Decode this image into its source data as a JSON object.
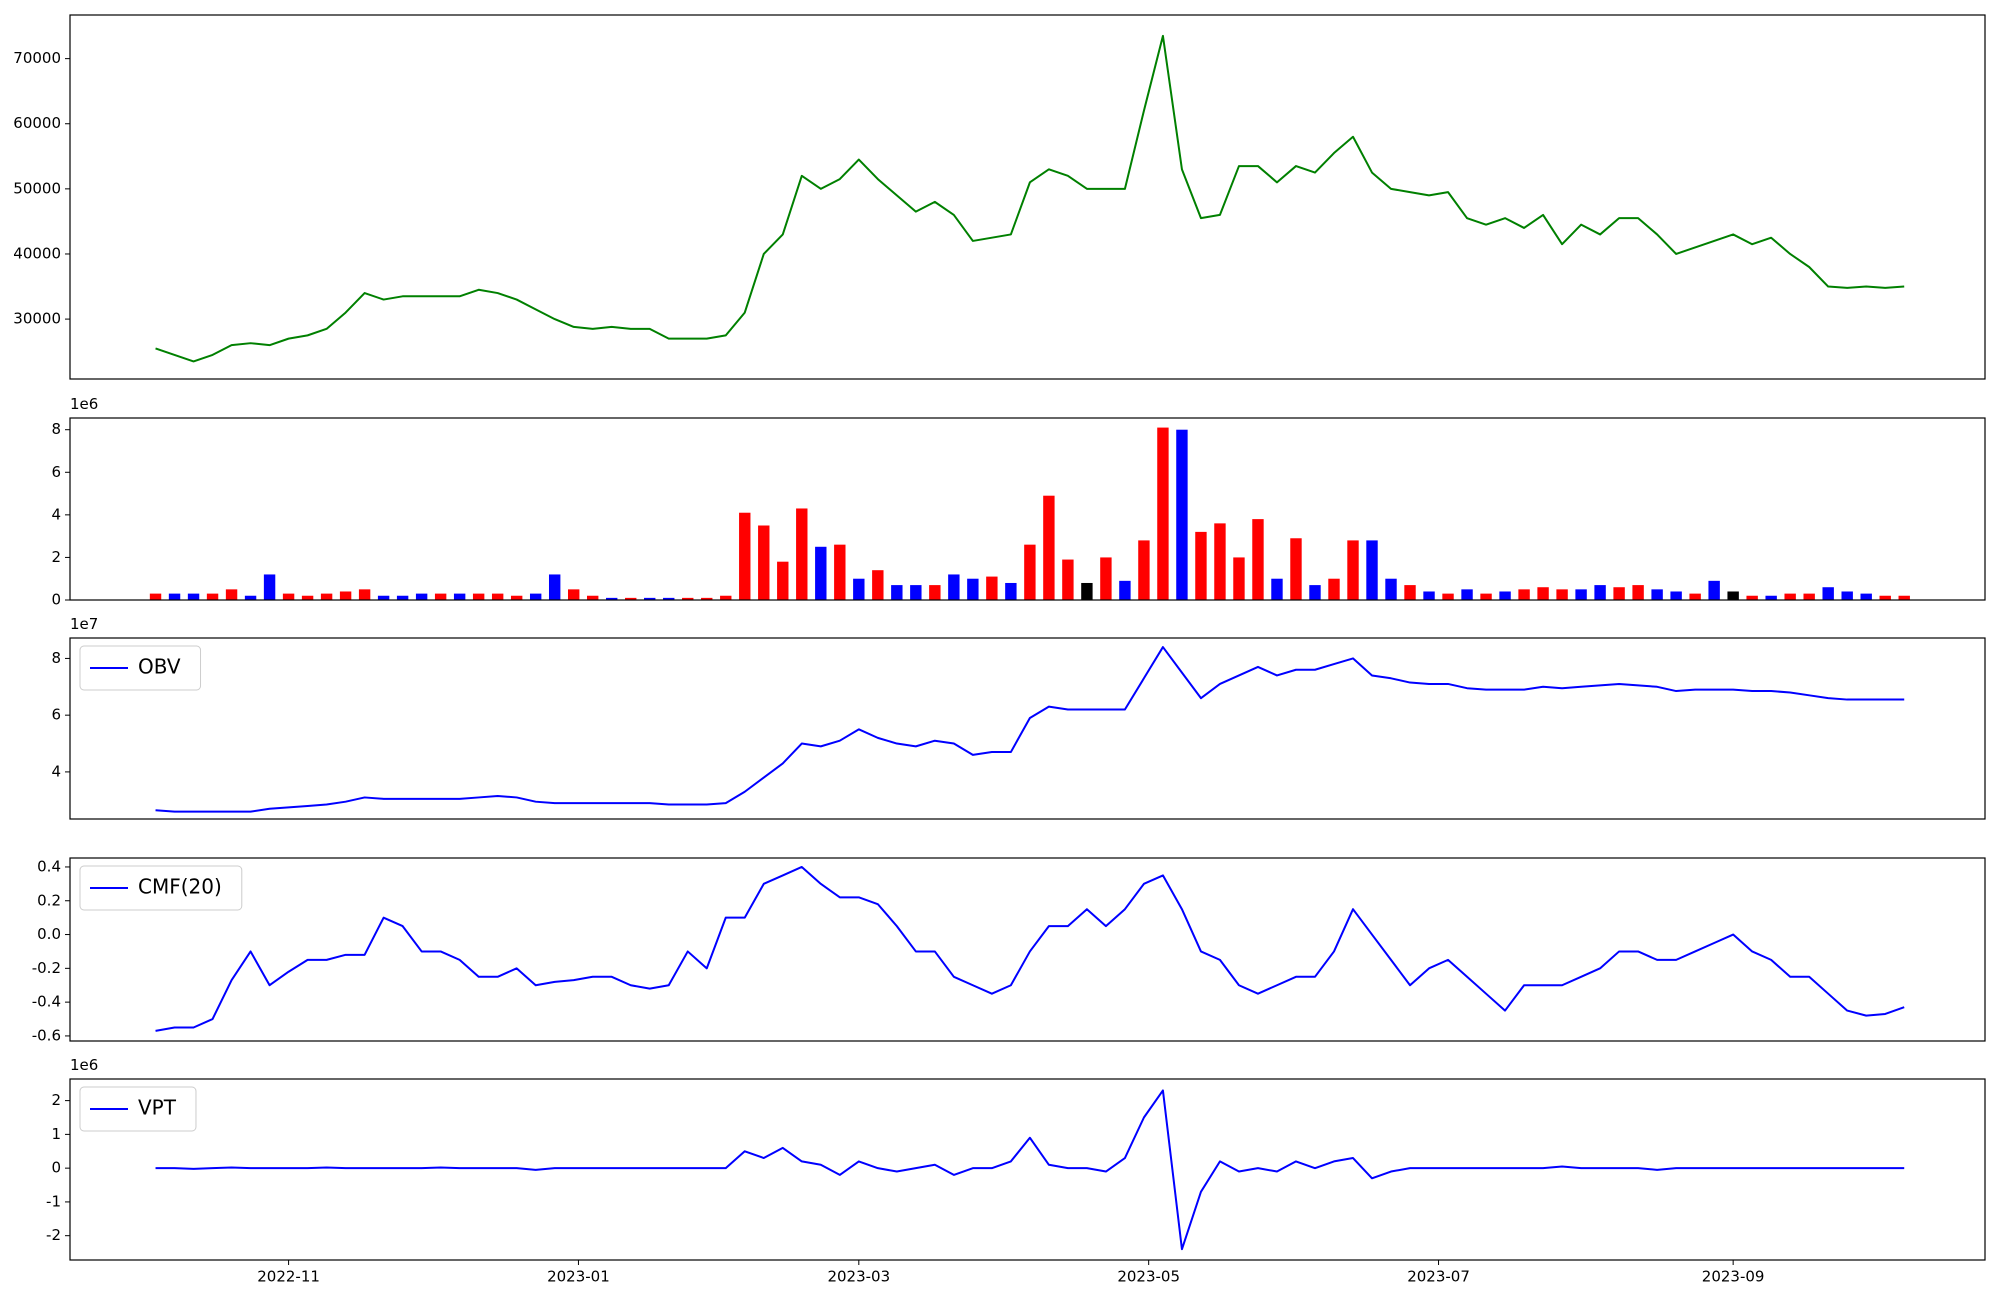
{
  "chart_data": [
    {
      "type": "line",
      "x": [
        19269,
        19273,
        19277,
        19281,
        19285,
        19289,
        19293,
        19297,
        19301,
        19305,
        19309,
        19313,
        19317,
        19321,
        19325,
        19329,
        19333,
        19337,
        19341,
        19345,
        19349,
        19353,
        19357,
        19361,
        19365,
        19369,
        19373,
        19377,
        19381,
        19385,
        19389,
        19393,
        19397,
        19401,
        19405,
        19409,
        19413,
        19417,
        19421,
        19425,
        19429,
        19433,
        19437,
        19441,
        19445,
        19449,
        19453,
        19457,
        19461,
        19465,
        19469,
        19473,
        19477,
        19481,
        19485,
        19489,
        19493,
        19497,
        19501,
        19505,
        19509,
        19513,
        19517,
        19521,
        19525,
        19529,
        19533,
        19537,
        19541,
        19545,
        19549,
        19553,
        19557,
        19561,
        19565,
        19569,
        19573,
        19577,
        19581,
        19585,
        19589,
        19593,
        19597,
        19601,
        19605,
        19609,
        19613,
        19617,
        19621,
        19625,
        19629,
        19633,
        19637
      ],
      "series": [
        {
          "color": "#008000",
          "values": [
            25500,
            24500,
            23500,
            24500,
            26000,
            26300,
            26000,
            27000,
            27500,
            28500,
            31000,
            34000,
            33000,
            33500,
            33500,
            33500,
            33500,
            34500,
            34000,
            33000,
            31500,
            30000,
            28800,
            28500,
            28800,
            28500,
            28500,
            27000,
            27000,
            27000,
            27500,
            31000,
            40000,
            43000,
            52000,
            50000,
            51500,
            54500,
            51500,
            49000,
            46500,
            48000,
            46000,
            42000,
            42500,
            43000,
            51000,
            53000,
            52000,
            50000,
            50000,
            50000,
            62000,
            73500,
            53000,
            45500,
            46000,
            53500,
            53500,
            51000,
            53500,
            52500,
            55500,
            58000,
            52500,
            50000,
            49500,
            49000,
            49500,
            45500,
            44500,
            45500,
            44000,
            46000,
            41500,
            44500,
            43000,
            45500,
            45500,
            43000,
            40000,
            41000,
            42000,
            43000,
            41500,
            42500,
            40000,
            38000,
            35000,
            34800,
            35000,
            34800,
            35000
          ]
        }
      ],
      "xlim": [
        19251,
        19654
      ],
      "ylim": [
        20800,
        76700
      ],
      "yticks": [
        30000,
        40000,
        50000,
        60000,
        70000
      ]
    },
    {
      "type": "bar",
      "offset_label": "1e6",
      "x": [
        19269,
        19273,
        19277,
        19281,
        19285,
        19289,
        19293,
        19297,
        19301,
        19305,
        19309,
        19313,
        19317,
        19321,
        19325,
        19329,
        19333,
        19337,
        19341,
        19345,
        19349,
        19353,
        19357,
        19361,
        19365,
        19369,
        19373,
        19377,
        19381,
        19385,
        19389,
        19393,
        19397,
        19401,
        19405,
        19409,
        19413,
        19417,
        19421,
        19425,
        19429,
        19433,
        19437,
        19441,
        19445,
        19449,
        19453,
        19457,
        19461,
        19465,
        19469,
        19473,
        19477,
        19481,
        19485,
        19489,
        19493,
        19497,
        19501,
        19505,
        19509,
        19513,
        19517,
        19521,
        19525,
        19529,
        19533,
        19537,
        19541,
        19545,
        19549,
        19553,
        19557,
        19561,
        19565,
        19569,
        19573,
        19577,
        19581,
        19585,
        19589,
        19593,
        19597,
        19601,
        19605,
        19609,
        19613,
        19617,
        19621,
        19625,
        19629,
        19633,
        19637
      ],
      "series": [
        {
          "values": [
            0.3,
            0.3,
            0.3,
            0.3,
            0.5,
            0.2,
            1.2,
            0.3,
            0.2,
            0.3,
            0.4,
            0.5,
            0.2,
            0.2,
            0.3,
            0.3,
            0.3,
            0.3,
            0.3,
            0.2,
            0.3,
            1.2,
            0.5,
            0.2,
            0.1,
            0.1,
            0.1,
            0.1,
            0.1,
            0.1,
            0.2,
            4.1,
            3.5,
            1.8,
            4.3,
            2.5,
            2.6,
            1.0,
            1.4,
            0.7,
            0.7,
            0.7,
            1.2,
            1.0,
            1.1,
            0.8,
            2.6,
            4.9,
            1.9,
            0.8,
            2.0,
            0.9,
            2.8,
            8.1,
            8.0,
            3.2,
            3.6,
            2.0,
            3.8,
            1.0,
            2.9,
            0.7,
            1.0,
            2.8,
            2.8,
            1.0,
            0.7,
            0.4,
            0.3,
            0.5,
            0.3,
            0.4,
            0.5,
            0.6,
            0.5,
            0.5,
            0.7,
            0.6,
            0.7,
            0.5,
            0.4,
            0.3,
            0.9,
            0.4,
            0.2,
            0.2,
            0.3,
            0.3,
            0.6,
            0.4,
            0.3,
            0.2,
            0.2
          ],
          "colors": [
            "#ff0000",
            "#0000ff",
            "#0000ff",
            "#ff0000",
            "#ff0000",
            "#0000ff",
            "#0000ff",
            "#ff0000",
            "#ff0000",
            "#ff0000",
            "#ff0000",
            "#ff0000",
            "#0000ff",
            "#0000ff",
            "#0000ff",
            "#ff0000",
            "#0000ff",
            "#ff0000",
            "#ff0000",
            "#ff0000",
            "#0000ff",
            "#0000ff",
            "#ff0000",
            "#ff0000",
            "#0000ff",
            "#ff0000",
            "#0000ff",
            "#0000ff",
            "#ff0000",
            "#ff0000",
            "#ff0000",
            "#ff0000",
            "#ff0000",
            "#ff0000",
            "#ff0000",
            "#0000ff",
            "#ff0000",
            "#0000ff",
            "#ff0000",
            "#0000ff",
            "#0000ff",
            "#ff0000",
            "#0000ff",
            "#0000ff",
            "#ff0000",
            "#0000ff",
            "#ff0000",
            "#ff0000",
            "#ff0000",
            "#000000",
            "#ff0000",
            "#0000ff",
            "#ff0000",
            "#ff0000",
            "#0000ff",
            "#ff0000",
            "#ff0000",
            "#ff0000",
            "#ff0000",
            "#0000ff",
            "#ff0000",
            "#0000ff",
            "#ff0000",
            "#ff0000",
            "#0000ff",
            "#0000ff",
            "#ff0000",
            "#0000ff",
            "#ff0000",
            "#0000ff",
            "#ff0000",
            "#0000ff",
            "#ff0000",
            "#ff0000",
            "#ff0000",
            "#0000ff",
            "#0000ff",
            "#ff0000",
            "#ff0000",
            "#0000ff",
            "#0000ff",
            "#ff0000",
            "#0000ff",
            "#000000",
            "#ff0000",
            "#0000ff",
            "#ff0000",
            "#ff0000",
            "#0000ff",
            "#0000ff",
            "#0000ff",
            "#ff0000",
            "#ff0000"
          ]
        }
      ],
      "xlim": [
        19251,
        19654
      ],
      "ylim": [
        0,
        8.55
      ],
      "yticks": [
        0,
        2,
        4,
        6,
        8
      ]
    },
    {
      "type": "line",
      "offset_label": "1e7",
      "legend": "upper left",
      "x": [
        19269,
        19273,
        19277,
        19281,
        19285,
        19289,
        19293,
        19297,
        19301,
        19305,
        19309,
        19313,
        19317,
        19321,
        19325,
        19329,
        19333,
        19337,
        19341,
        19345,
        19349,
        19353,
        19357,
        19361,
        19365,
        19369,
        19373,
        19377,
        19381,
        19385,
        19389,
        19393,
        19397,
        19401,
        19405,
        19409,
        19413,
        19417,
        19421,
        19425,
        19429,
        19433,
        19437,
        19441,
        19445,
        19449,
        19453,
        19457,
        19461,
        19465,
        19469,
        19473,
        19477,
        19481,
        19485,
        19489,
        19493,
        19497,
        19501,
        19505,
        19509,
        19513,
        19517,
        19521,
        19525,
        19529,
        19533,
        19537,
        19541,
        19545,
        19549,
        19553,
        19557,
        19561,
        19565,
        19569,
        19573,
        19577,
        19581,
        19585,
        19589,
        19593,
        19597,
        19601,
        19605,
        19609,
        19613,
        19617,
        19621,
        19625,
        19629,
        19633,
        19637
      ],
      "series": [
        {
          "name": "OBV",
          "color": "#0000ff",
          "values": [
            2.65,
            2.6,
            2.6,
            2.6,
            2.6,
            2.6,
            2.7,
            2.75,
            2.8,
            2.85,
            2.95,
            3.1,
            3.05,
            3.05,
            3.05,
            3.05,
            3.05,
            3.1,
            3.15,
            3.1,
            2.95,
            2.9,
            2.9,
            2.9,
            2.9,
            2.9,
            2.9,
            2.85,
            2.85,
            2.85,
            2.9,
            3.3,
            3.8,
            4.3,
            5.0,
            4.9,
            5.1,
            5.5,
            5.2,
            5.0,
            4.9,
            5.1,
            5.0,
            4.6,
            4.7,
            4.7,
            5.9,
            6.3,
            6.2,
            6.2,
            6.2,
            6.2,
            7.3,
            8.4,
            7.5,
            6.6,
            7.1,
            7.4,
            7.7,
            7.4,
            7.6,
            7.6,
            7.8,
            8.0,
            7.4,
            7.3,
            7.15,
            7.1,
            7.1,
            6.95,
            6.9,
            6.9,
            6.9,
            7.0,
            6.95,
            7.0,
            7.05,
            7.1,
            7.05,
            7.0,
            6.85,
            6.9,
            6.9,
            6.9,
            6.85,
            6.85,
            6.8,
            6.7,
            6.6,
            6.55,
            6.55,
            6.55,
            6.55
          ]
        }
      ],
      "xlim": [
        19251,
        19654
      ],
      "ylim": [
        2.34,
        8.72
      ],
      "yticks": [
        4,
        6,
        8
      ]
    },
    {
      "type": "line",
      "legend": "upper left",
      "x": [
        19269,
        19273,
        19277,
        19281,
        19285,
        19289,
        19293,
        19297,
        19301,
        19305,
        19309,
        19313,
        19317,
        19321,
        19325,
        19329,
        19333,
        19337,
        19341,
        19345,
        19349,
        19353,
        19357,
        19361,
        19365,
        19369,
        19373,
        19377,
        19381,
        19385,
        19389,
        19393,
        19397,
        19401,
        19405,
        19409,
        19413,
        19417,
        19421,
        19425,
        19429,
        19433,
        19437,
        19441,
        19445,
        19449,
        19453,
        19457,
        19461,
        19465,
        19469,
        19473,
        19477,
        19481,
        19485,
        19489,
        19493,
        19497,
        19501,
        19505,
        19509,
        19513,
        19517,
        19521,
        19525,
        19529,
        19533,
        19537,
        19541,
        19545,
        19549,
        19553,
        19557,
        19561,
        19565,
        19569,
        19573,
        19577,
        19581,
        19585,
        19589,
        19593,
        19597,
        19601,
        19605,
        19609,
        19613,
        19617,
        19621,
        19625,
        19629,
        19633,
        19637
      ],
      "series": [
        {
          "name": "CMF(20)",
          "color": "#0000ff",
          "values": [
            -0.57,
            -0.55,
            -0.55,
            -0.5,
            -0.27,
            -0.1,
            -0.3,
            -0.22,
            -0.15,
            -0.15,
            -0.12,
            -0.12,
            0.1,
            0.05,
            -0.1,
            -0.1,
            -0.15,
            -0.25,
            -0.25,
            -0.2,
            -0.3,
            -0.28,
            -0.27,
            -0.25,
            -0.25,
            -0.3,
            -0.32,
            -0.3,
            -0.1,
            -0.2,
            0.1,
            0.1,
            0.3,
            0.35,
            0.4,
            0.3,
            0.22,
            0.22,
            0.18,
            0.05,
            -0.1,
            -0.1,
            -0.25,
            -0.3,
            -0.35,
            -0.3,
            -0.1,
            0.05,
            0.05,
            0.15,
            0.05,
            0.15,
            0.3,
            0.35,
            0.15,
            -0.1,
            -0.15,
            -0.3,
            -0.35,
            -0.3,
            -0.25,
            -0.25,
            -0.1,
            0.15,
            0,
            -0.15,
            -0.3,
            -0.2,
            -0.15,
            -0.25,
            -0.35,
            -0.45,
            -0.3,
            -0.3,
            -0.3,
            -0.25,
            -0.2,
            -0.1,
            -0.1,
            -0.15,
            -0.15,
            -0.1,
            -0.05,
            0,
            -0.1,
            -0.15,
            -0.25,
            -0.25,
            -0.35,
            -0.45,
            -0.48,
            -0.47,
            -0.43
          ]
        }
      ],
      "xlim": [
        19251,
        19654
      ],
      "ylim": [
        -0.63,
        0.453
      ],
      "yticks": [
        -0.6,
        -0.4,
        -0.2,
        {
          "value": 0,
          "label": "0.0"
        },
        0.2,
        0.4
      ]
    },
    {
      "type": "line",
      "offset_label": "1e6",
      "legend": "upper left",
      "x": [
        19269,
        19273,
        19277,
        19281,
        19285,
        19289,
        19293,
        19297,
        19301,
        19305,
        19309,
        19313,
        19317,
        19321,
        19325,
        19329,
        19333,
        19337,
        19341,
        19345,
        19349,
        19353,
        19357,
        19361,
        19365,
        19369,
        19373,
        19377,
        19381,
        19385,
        19389,
        19393,
        19397,
        19401,
        19405,
        19409,
        19413,
        19417,
        19421,
        19425,
        19429,
        19433,
        19437,
        19441,
        19445,
        19449,
        19453,
        19457,
        19461,
        19465,
        19469,
        19473,
        19477,
        19481,
        19485,
        19489,
        19493,
        19497,
        19501,
        19505,
        19509,
        19513,
        19517,
        19521,
        19525,
        19529,
        19533,
        19537,
        19541,
        19545,
        19549,
        19553,
        19557,
        19561,
        19565,
        19569,
        19573,
        19577,
        19581,
        19585,
        19589,
        19593,
        19597,
        19601,
        19605,
        19609,
        19613,
        19617,
        19621,
        19625,
        19629,
        19633,
        19637
      ],
      "series": [
        {
          "name": "VPT",
          "color": "#0000ff",
          "values": [
            0,
            0,
            -0.02,
            0,
            0.02,
            0,
            0,
            0,
            0,
            0.02,
            0,
            0,
            0,
            0,
            0,
            0.02,
            0,
            0,
            0,
            0,
            -0.05,
            0,
            0,
            0,
            0,
            0,
            0,
            0,
            0,
            0,
            0,
            0.5,
            0.3,
            0.6,
            0.2,
            0.1,
            -0.2,
            0.2,
            0,
            -0.1,
            0,
            0.1,
            -0.2,
            0,
            0,
            0.2,
            0.9,
            0.1,
            0,
            0,
            -0.1,
            0.3,
            1.5,
            2.3,
            -2.4,
            -0.7,
            0.2,
            -0.1,
            0,
            -0.1,
            0.2,
            0,
            0.2,
            0.3,
            -0.3,
            -0.1,
            0,
            0,
            0,
            0,
            0,
            0,
            0,
            0,
            0.05,
            0,
            0,
            0,
            0,
            -0.05,
            0,
            0,
            0,
            0,
            0,
            0,
            0,
            0,
            0,
            0,
            0,
            0,
            0
          ]
        }
      ],
      "xlim": [
        19251,
        19654
      ],
      "ylim": [
        -2.72,
        2.64
      ],
      "yticks": [
        -2,
        -1,
        0,
        1,
        2
      ],
      "xticks": [
        {
          "value": 19297,
          "label": "2022-11"
        },
        {
          "value": 19358,
          "label": "2023-01"
        },
        {
          "value": 19417,
          "label": "2023-03"
        },
        {
          "value": 19478,
          "label": "2023-05"
        },
        {
          "value": 19539,
          "label": "2023-07"
        },
        {
          "value": 19601,
          "label": "2023-09"
        }
      ]
    }
  ]
}
